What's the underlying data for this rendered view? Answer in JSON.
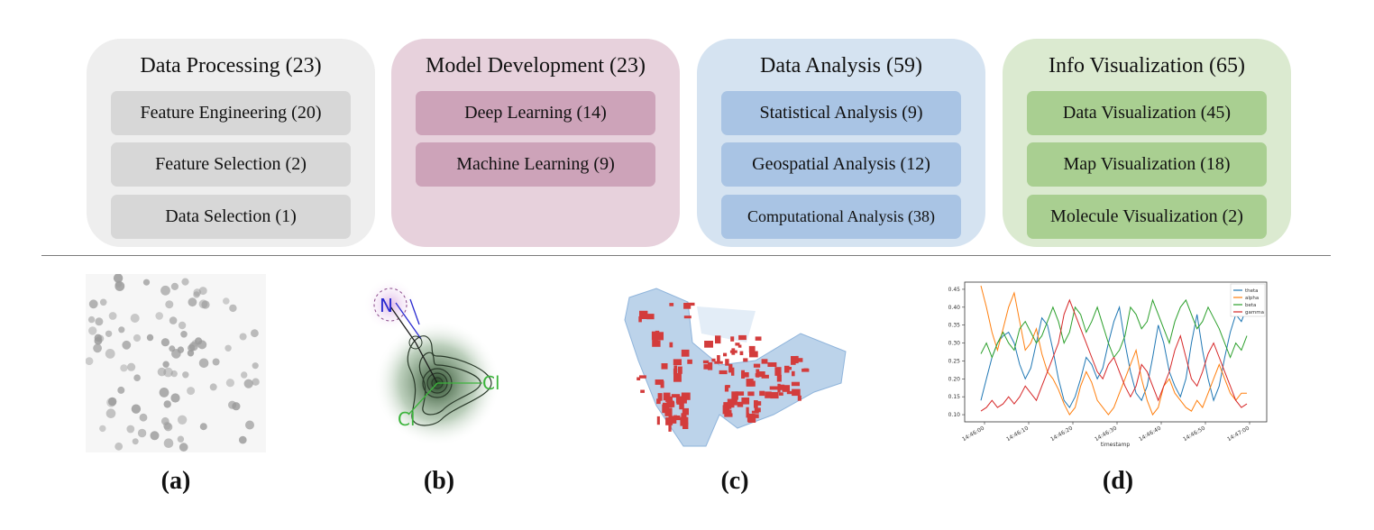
{
  "categories": [
    {
      "title": "Data Processing (23)",
      "items": [
        "Feature Engineering (20)",
        "Feature Selection (2)",
        "Data Selection (1)"
      ]
    },
    {
      "title": "Model Development (23)",
      "items": [
        "Deep Learning (14)",
        "Machine Learning (9)"
      ]
    },
    {
      "title": "Data Analysis (59)",
      "items": [
        "Statistical Analysis (9)",
        "Geospatial Analysis (12)",
        "Computational Analysis (38)"
      ]
    },
    {
      "title": "Info Visualization (65)",
      "items": [
        "Data Visualization (45)",
        "Map Visualization (18)",
        "Molecule Visualization (2)"
      ]
    }
  ],
  "colors": {
    "card_bg": [
      "#eeeeee",
      "#e7d1dc",
      "#d5e3f1",
      "#dbead0"
    ],
    "pill_bg": [
      "#d7d7d7",
      "#cda3b9",
      "#a9c4e4",
      "#a9cf91"
    ]
  },
  "panel_labels": [
    "(a)",
    "(b)",
    "(c)",
    "(d)"
  ],
  "molecule": {
    "atoms": [
      "N",
      "Cl",
      "Cl"
    ]
  },
  "chart_data": {
    "type": "line",
    "x_ticks": [
      "14:46:00",
      "14:46:10",
      "14:46:20",
      "14:46:30",
      "14:46:40",
      "14:46:50",
      "14:47:00"
    ],
    "xlabel": "timestamp",
    "y_ticks": [
      "0.10",
      "0.15",
      "0.20",
      "0.25",
      "0.30",
      "0.35",
      "0.40",
      "0.45"
    ],
    "ylim": [
      0.08,
      0.47
    ],
    "legend_position": "top-right",
    "series": [
      {
        "name": "theta",
        "color": "#1f77b4",
        "values": [
          0.14,
          0.2,
          0.26,
          0.3,
          0.32,
          0.33,
          0.3,
          0.24,
          0.2,
          0.23,
          0.3,
          0.37,
          0.35,
          0.28,
          0.2,
          0.14,
          0.12,
          0.15,
          0.2,
          0.26,
          0.24,
          0.2,
          0.23,
          0.3,
          0.36,
          0.4,
          0.3,
          0.22,
          0.16,
          0.14,
          0.18,
          0.26,
          0.35,
          0.3,
          0.22,
          0.18,
          0.15,
          0.2,
          0.3,
          0.38,
          0.28,
          0.2,
          0.14,
          0.18,
          0.26,
          0.33,
          0.38,
          0.36,
          0.4
        ]
      },
      {
        "name": "alpha",
        "color": "#ff7f0e",
        "values": [
          0.46,
          0.4,
          0.33,
          0.28,
          0.34,
          0.4,
          0.44,
          0.36,
          0.28,
          0.3,
          0.34,
          0.27,
          0.22,
          0.2,
          0.17,
          0.13,
          0.1,
          0.12,
          0.18,
          0.22,
          0.19,
          0.14,
          0.12,
          0.1,
          0.12,
          0.16,
          0.2,
          0.24,
          0.28,
          0.2,
          0.14,
          0.1,
          0.12,
          0.18,
          0.2,
          0.16,
          0.14,
          0.12,
          0.11,
          0.14,
          0.12,
          0.16,
          0.2,
          0.24,
          0.2,
          0.16,
          0.14,
          0.16,
          0.16
        ]
      },
      {
        "name": "beta",
        "color": "#2ca02c",
        "values": [
          0.27,
          0.3,
          0.26,
          0.3,
          0.33,
          0.3,
          0.28,
          0.34,
          0.36,
          0.33,
          0.3,
          0.32,
          0.36,
          0.4,
          0.36,
          0.3,
          0.33,
          0.4,
          0.38,
          0.33,
          0.36,
          0.4,
          0.35,
          0.3,
          0.26,
          0.28,
          0.32,
          0.4,
          0.38,
          0.34,
          0.36,
          0.42,
          0.38,
          0.34,
          0.3,
          0.36,
          0.4,
          0.42,
          0.38,
          0.34,
          0.36,
          0.4,
          0.37,
          0.34,
          0.3,
          0.26,
          0.3,
          0.28,
          0.32
        ]
      },
      {
        "name": "gamma",
        "color": "#d62728",
        "values": [
          0.11,
          0.12,
          0.14,
          0.12,
          0.13,
          0.15,
          0.13,
          0.15,
          0.18,
          0.16,
          0.14,
          0.18,
          0.22,
          0.26,
          0.3,
          0.38,
          0.42,
          0.38,
          0.34,
          0.3,
          0.26,
          0.22,
          0.2,
          0.24,
          0.26,
          0.22,
          0.18,
          0.15,
          0.18,
          0.24,
          0.22,
          0.18,
          0.14,
          0.18,
          0.22,
          0.28,
          0.32,
          0.26,
          0.2,
          0.18,
          0.22,
          0.27,
          0.3,
          0.26,
          0.22,
          0.18,
          0.14,
          0.12,
          0.13
        ]
      }
    ]
  }
}
